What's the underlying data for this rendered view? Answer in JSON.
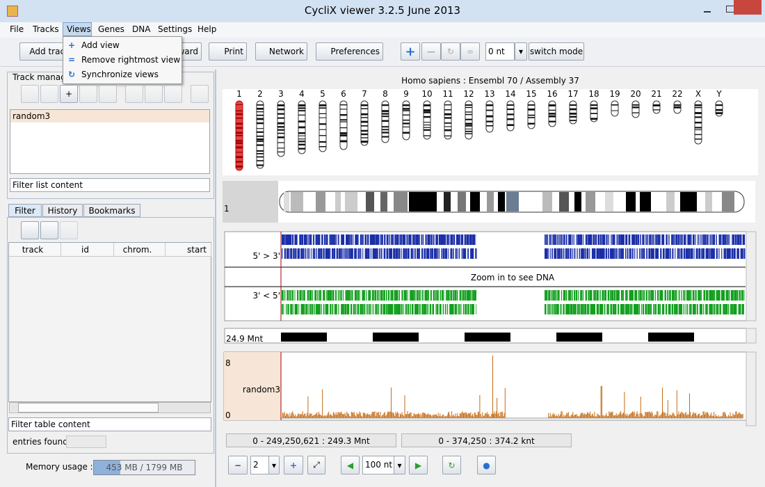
{
  "window": {
    "title": "CycliX viewer 3.2.5 June 2013"
  },
  "menu": [
    "File",
    "Tracks",
    "Views",
    "Genes",
    "DNA",
    "Settings",
    "Help"
  ],
  "views_menu": [
    "Add view",
    "Remove rightmost view",
    "Synchronize views"
  ],
  "toolbar": {
    "add_track": "Add track",
    "forward": "Forward",
    "print": "Print",
    "network": "Network",
    "preferences": "Preferences",
    "step": "0 nt",
    "switch_mode": "switch mode"
  },
  "track_manager": {
    "title": "Track manager",
    "items": [
      "random3"
    ],
    "filter": "Filter list content"
  },
  "tabs": [
    "Filter",
    "History",
    "Bookmarks"
  ],
  "table": {
    "columns": [
      "track",
      "id",
      "chrom.",
      "start"
    ],
    "filter": "Filter table content",
    "entries_found": "entries found"
  },
  "memory": {
    "label": "Memory usage :",
    "value": "453 MB / 1799 MB"
  },
  "genome": {
    "header": "Homo sapiens : Ensembl 70 / Assembly 37",
    "chromosomes": [
      "1",
      "2",
      "3",
      "4",
      "5",
      "6",
      "7",
      "8",
      "9",
      "10",
      "11",
      "12",
      "13",
      "14",
      "15",
      "16",
      "17",
      "18",
      "19",
      "20",
      "21",
      "22",
      "X",
      "Y"
    ],
    "selected": "1"
  },
  "dna": {
    "forward": "5' > 3'",
    "message": "Zoom in to see DNA",
    "reverse": "3' < 5'",
    "scale": "24.9 Mnt"
  },
  "track": {
    "name": "random3",
    "ymax": "8",
    "ymin": "0"
  },
  "status": [
    "0 - 249,250,621 : 249.3 Mnt",
    "0 - 374,250 : 374.2 knt"
  ],
  "controls": {
    "views": "2",
    "step": "100 nt"
  }
}
